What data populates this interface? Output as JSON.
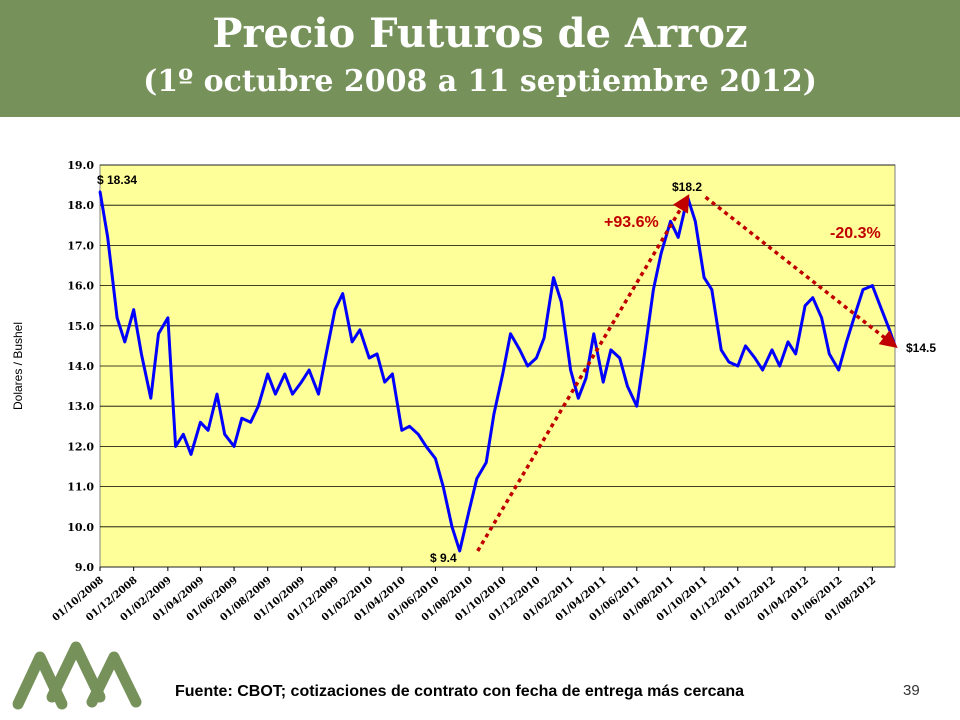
{
  "slide": {
    "title": "Precio Futuros de Arroz",
    "subtitle": "(1º octubre 2008 a 11 septiembre 2012)",
    "source": "Fuente: CBOT; cotizaciones de contrato con fecha de entrega más cercana",
    "page_number": "39",
    "banner_color": "#76915a"
  },
  "chart_data": {
    "type": "line",
    "title": "",
    "xlabel": "",
    "ylabel": "Dolares / Bushel",
    "ylim": [
      9.0,
      19.0
    ],
    "y_ticks": [
      "9.0",
      "10.0",
      "11.0",
      "12.0",
      "13.0",
      "14.0",
      "15.0",
      "16.0",
      "17.0",
      "18.0",
      "19.0"
    ],
    "x_ticks": [
      "01/10/2008",
      "01/12/2008",
      "01/02/2009",
      "01/04/2009",
      "01/06/2009",
      "01/08/2009",
      "01/10/2009",
      "01/12/2009",
      "01/02/2010",
      "01/04/2010",
      "01/06/2010",
      "01/08/2010",
      "01/10/2010",
      "01/12/2010",
      "01/02/2011",
      "01/04/2011",
      "01/06/2011",
      "01/08/2011",
      "01/10/2011",
      "01/12/2011",
      "01/02/2012",
      "01/04/2012",
      "01/06/2012",
      "01/08/2012"
    ],
    "grid": true,
    "plot_background": "#ffff99",
    "series": [
      {
        "color": "#0000ff",
        "x": [
          "01/10/2008",
          "15/10/2008",
          "01/11/2008",
          "15/11/2008",
          "01/12/2008",
          "15/12/2008",
          "01/01/2009",
          "15/01/2009",
          "01/02/2009",
          "15/02/2009",
          "01/03/2009",
          "15/03/2009",
          "01/04/2009",
          "15/04/2009",
          "01/05/2009",
          "15/05/2009",
          "01/06/2009",
          "15/06/2009",
          "01/07/2009",
          "15/07/2009",
          "01/08/2009",
          "15/08/2009",
          "01/09/2009",
          "15/09/2009",
          "01/10/2009",
          "15/10/2009",
          "01/11/2009",
          "15/11/2009",
          "01/12/2009",
          "15/12/2009",
          "01/01/2010",
          "15/01/2010",
          "01/02/2010",
          "15/02/2010",
          "01/03/2010",
          "15/03/2010",
          "01/04/2010",
          "15/04/2010",
          "01/05/2010",
          "15/05/2010",
          "01/06/2010",
          "15/06/2010",
          "01/07/2010",
          "15/07/2010",
          "01/08/2010",
          "15/08/2010",
          "01/09/2010",
          "15/09/2010",
          "01/10/2010",
          "15/10/2010",
          "01/11/2010",
          "15/11/2010",
          "01/12/2010",
          "15/12/2010",
          "01/01/2011",
          "15/01/2011",
          "01/02/2011",
          "15/02/2011",
          "01/03/2011",
          "15/03/2011",
          "01/04/2011",
          "15/04/2011",
          "01/05/2011",
          "15/05/2011",
          "01/06/2011",
          "15/06/2011",
          "01/07/2011",
          "15/07/2011",
          "01/08/2011",
          "15/08/2011",
          "01/09/2011",
          "15/09/2011",
          "01/10/2011",
          "15/10/2011",
          "01/11/2011",
          "15/11/2011",
          "01/12/2011",
          "15/12/2011",
          "01/01/2012",
          "15/01/2012",
          "01/02/2012",
          "15/02/2012",
          "01/03/2012",
          "15/03/2012",
          "01/04/2012",
          "15/04/2012",
          "01/05/2012",
          "15/05/2012",
          "01/06/2012",
          "15/06/2012",
          "01/07/2012",
          "15/07/2012",
          "01/08/2012",
          "15/08/2012",
          "01/09/2012",
          "11/09/2012"
        ],
        "values": [
          18.34,
          17.2,
          15.2,
          14.6,
          15.4,
          14.3,
          13.2,
          14.8,
          15.2,
          12.0,
          12.3,
          11.8,
          12.6,
          12.4,
          13.3,
          12.3,
          12.0,
          12.7,
          12.6,
          13.0,
          13.8,
          13.3,
          13.8,
          13.3,
          13.6,
          13.9,
          13.3,
          14.3,
          15.4,
          15.8,
          14.6,
          14.9,
          14.2,
          14.3,
          13.6,
          13.8,
          12.4,
          12.5,
          12.3,
          12.0,
          11.7,
          11.0,
          10.0,
          9.4,
          10.4,
          11.2,
          11.6,
          12.8,
          13.8,
          14.8,
          14.4,
          14.0,
          14.2,
          14.7,
          16.2,
          15.6,
          13.9,
          13.2,
          13.7,
          14.8,
          13.6,
          14.4,
          14.2,
          13.5,
          13.0,
          14.3,
          15.9,
          16.8,
          17.6,
          17.2,
          18.2,
          17.6,
          16.2,
          15.9,
          14.4,
          14.1,
          14.0,
          14.5,
          14.2,
          13.9,
          14.4,
          14.0,
          14.6,
          14.3,
          15.5,
          15.7,
          15.2,
          14.3,
          13.9,
          14.6,
          15.3,
          15.9,
          16.0,
          15.5,
          14.9,
          14.5
        ]
      }
    ],
    "annotations": [
      {
        "text": "$ 18.34",
        "x": "01/10/2008",
        "y": 18.34
      },
      {
        "text": "$ 9.4",
        "x": "15/07/2010",
        "y": 9.4
      },
      {
        "text": "$18.2",
        "x": "01/09/2011",
        "y": 18.2
      },
      {
        "text": "$14.5",
        "x": "11/09/2012",
        "y": 14.5
      },
      {
        "text": "+93.6%",
        "color": "#c00000"
      },
      {
        "text": "-20.3%",
        "color": "#c00000"
      }
    ],
    "trend_arrows": [
      {
        "from": {
          "x": "15/07/2010",
          "y": 9.4
        },
        "to": {
          "x": "01/09/2011",
          "y": 18.2
        },
        "color": "#c00000"
      },
      {
        "from": {
          "x": "01/09/2011",
          "y": 18.2
        },
        "to": {
          "x": "11/09/2012",
          "y": 14.5
        },
        "color": "#c00000"
      }
    ]
  }
}
